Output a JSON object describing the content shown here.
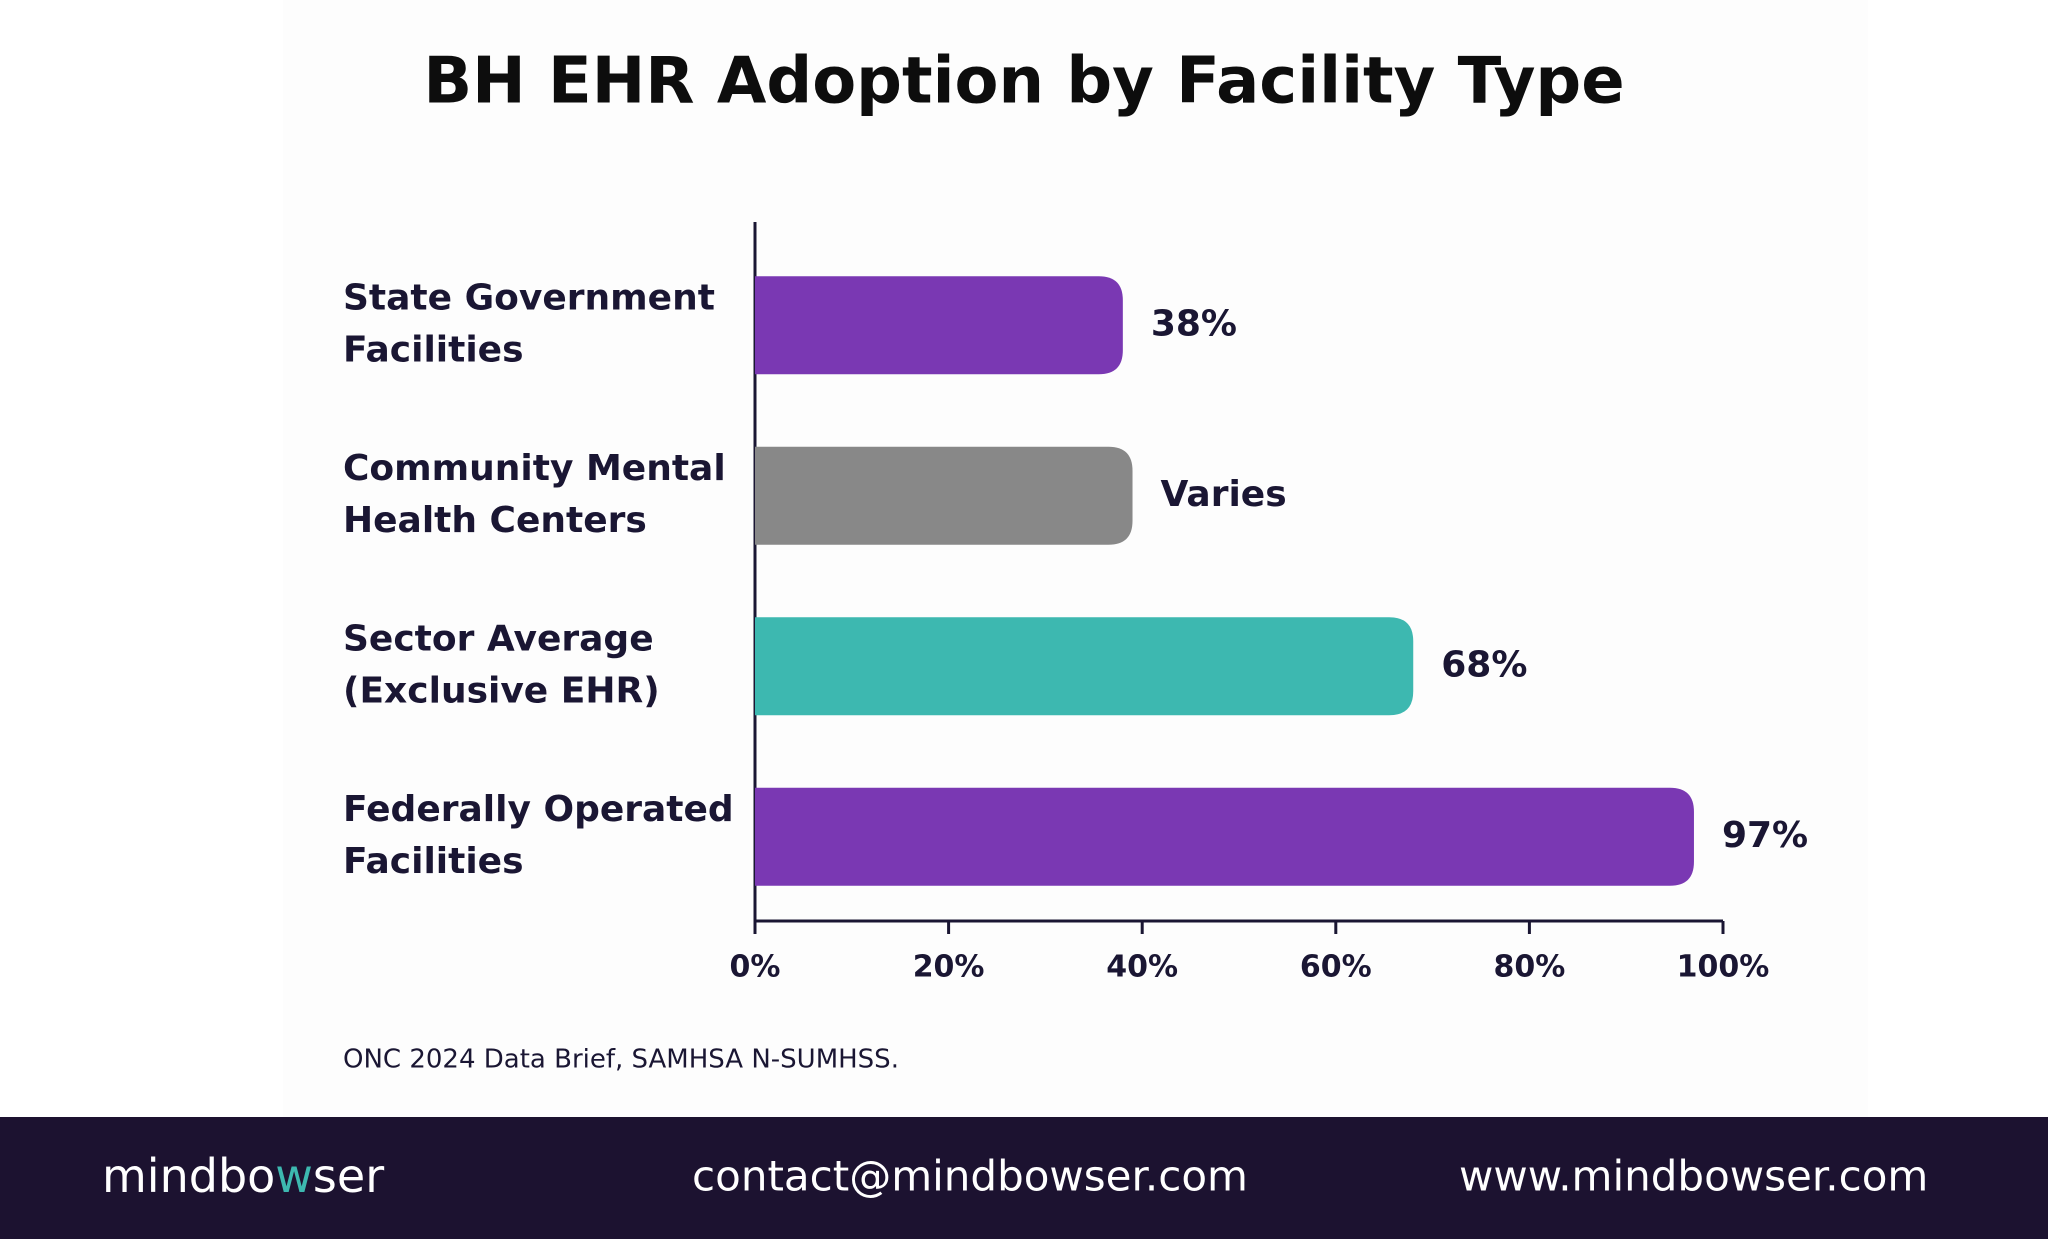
{
  "chart_data": {
    "type": "bar",
    "orientation": "horizontal",
    "title": "BH EHR Adoption by Facility Type",
    "categories": [
      [
        "State Government",
        "Facilities"
      ],
      [
        "Community Mental",
        "Health Centers"
      ],
      [
        "Sector Average",
        "(Exclusive EHR)"
      ],
      [
        "Federally Operated",
        "Facilities"
      ]
    ],
    "values": [
      38,
      39,
      68,
      97
    ],
    "value_labels": [
      "38%",
      "Varies",
      "68%",
      "97%"
    ],
    "colors": [
      "#7a38b3",
      "#888888",
      "#3db8b0",
      "#7a38b3"
    ],
    "xlim": [
      0,
      100
    ],
    "xticks": [
      {
        "value": 0,
        "label": "0%"
      },
      {
        "value": 20,
        "label": "20%"
      },
      {
        "value": 40,
        "label": "40%"
      },
      {
        "value": 60,
        "label": "60%"
      },
      {
        "value": 80,
        "label": "80%"
      },
      {
        "value": 100,
        "label": "100%"
      }
    ],
    "grid": false,
    "source": "ONC 2024 Data Brief, SAMHSA N-SUMHSS."
  },
  "footer": {
    "logo": [
      "mindbo",
      "w",
      "ser"
    ],
    "email": "contact@mindbowser.com",
    "website": "www.mindbowser.com"
  }
}
